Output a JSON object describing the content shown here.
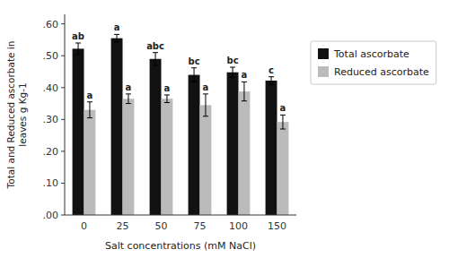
{
  "chart_data": {
    "type": "bar",
    "xlabel": "Salt concentrations (mM NaCl)",
    "ylabel": "Total and Reduced ascorbate in\nleaves g Kg-1",
    "categories": [
      "0",
      "25",
      "50",
      "75",
      "100",
      "150"
    ],
    "series": [
      {
        "name": "Total ascorbate",
        "color": "#111111",
        "values": [
          0.522,
          0.555,
          0.49,
          0.44,
          0.448,
          0.422
        ],
        "errors": [
          0.018,
          0.012,
          0.02,
          0.022,
          0.016,
          0.012
        ],
        "labels": [
          "ab",
          "a",
          "abc",
          "bc",
          "bc",
          "c"
        ]
      },
      {
        "name": "Reduced ascorbate",
        "color": "#bbbbbb",
        "values": [
          0.33,
          0.365,
          0.365,
          0.345,
          0.388,
          0.292
        ],
        "errors": [
          0.025,
          0.015,
          0.012,
          0.035,
          0.03,
          0.022
        ],
        "labels": [
          "a",
          "a",
          "a",
          "a",
          "a",
          "a"
        ]
      }
    ],
    "ylim": [
      0.0,
      0.63
    ],
    "yticks": [
      {
        "value": 0.0,
        "label": ".00"
      },
      {
        "value": 0.1,
        "label": ".10"
      },
      {
        "value": 0.2,
        "label": ".20"
      },
      {
        "value": 0.3,
        "label": ".30"
      },
      {
        "value": 0.4,
        "label": ".40"
      },
      {
        "value": 0.5,
        "label": ".50"
      },
      {
        "value": 0.6,
        "label": ".60"
      }
    ],
    "grid": false,
    "legend": "right"
  }
}
